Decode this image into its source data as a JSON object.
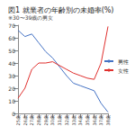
{
  "chart_data": {
    "type": "line",
    "title": "図1 就業者の年齢別の未婚率(%)",
    "subtitle": "※30〜39歳の男女",
    "categories": [
      "25歳",
      "26歳",
      "27歳",
      "28歳",
      "29歳",
      "30歳",
      "31歳",
      "32歳",
      "33歳",
      "34歳",
      "35歳",
      "36歳",
      "37歳",
      "38歳"
    ],
    "series": [
      {
        "name": "男性",
        "color": "#4472c4",
        "values": [
          66,
          61,
          63,
          56,
          49,
          44,
          37,
          30,
          24,
          22,
          20,
          18,
          8,
          1
        ]
      },
      {
        "name": "女性",
        "color": "#e0302e",
        "values": [
          12,
          20,
          35,
          40,
          40,
          41,
          38,
          35,
          32,
          30,
          28,
          27,
          40,
          69
        ]
      }
    ],
    "ylim": [
      0,
      70
    ],
    "yticks": [
      0,
      10,
      20,
      30,
      40,
      50,
      60,
      70
    ],
    "grid": false,
    "legend": "right"
  }
}
